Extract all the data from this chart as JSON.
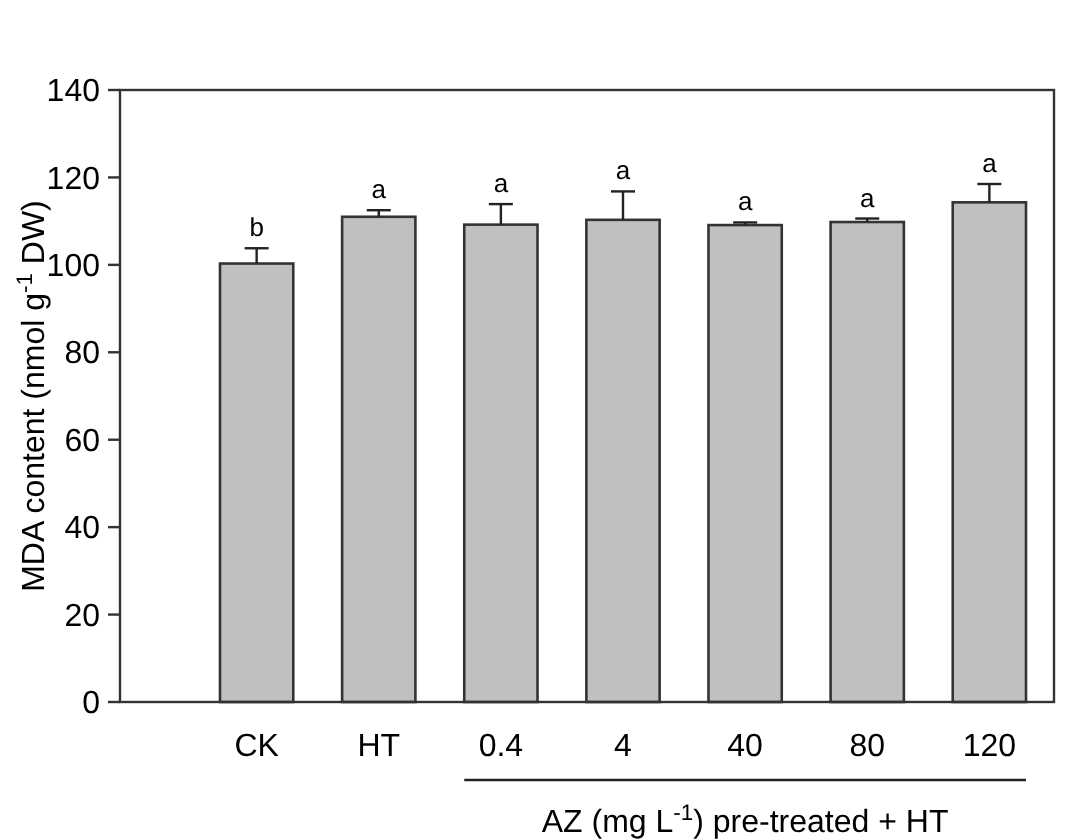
{
  "chart_data": {
    "type": "bar",
    "categories": [
      "CK",
      "HT",
      "0.4",
      "4",
      "40",
      "80",
      "120"
    ],
    "values": [
      100.3,
      111,
      109.2,
      110.3,
      109.1,
      109.8,
      114.3
    ],
    "errors": [
      3.5,
      1.5,
      4.7,
      6.5,
      0.6,
      0.8,
      4.2
    ],
    "color": "#c0c0c0",
    "ylabel": "MDA content (nmol g$^{-1}$ DW)",
    "xlabel": "AZ (mg L$^{-1}$) pre-treated + HT",
    "ylim": [
      0,
      140
    ],
    "yticks": [
      0,
      20,
      40,
      60,
      80,
      100,
      120,
      140
    ],
    "annotations": [
      {
        "text": "b",
        "x": "CK",
        "y": 103.8
      },
      {
        "text": "a",
        "x": "HT",
        "y": 112.5
      },
      {
        "text": "a",
        "x": "0.4",
        "y": 113.9
      },
      {
        "text": "a",
        "x": "4",
        "y": 116.8
      },
      {
        "text": "a",
        "x": "40",
        "y": 109.7
      },
      {
        "text": "a",
        "x": "80",
        "y": 110.6
      },
      {
        "text": "a",
        "x": "120",
        "y": 118.5
      }
    ]
  }
}
